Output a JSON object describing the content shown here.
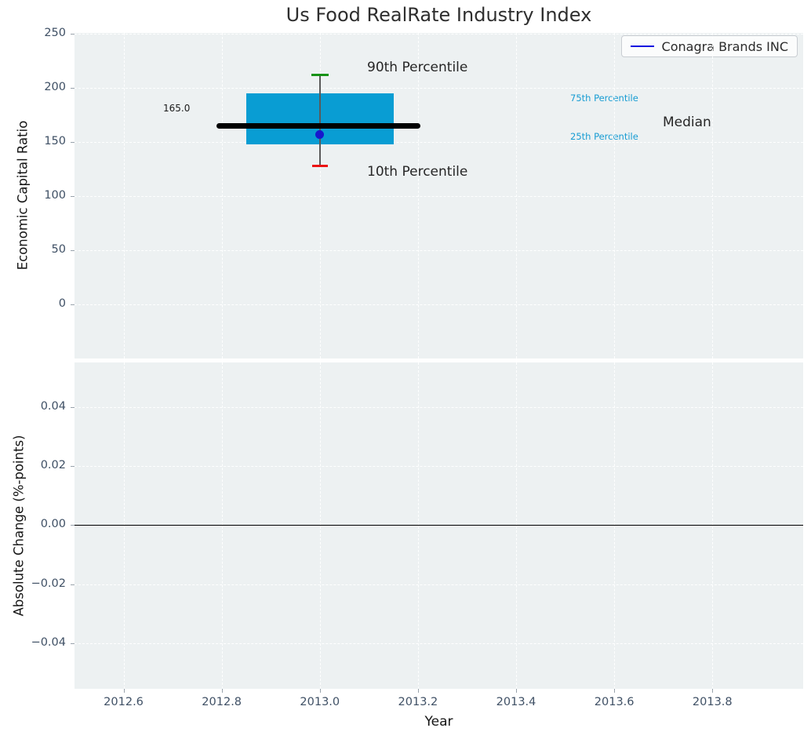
{
  "figure": {
    "title": "Us Food RealRate Industry Index",
    "xlabel": "Year"
  },
  "legend": {
    "label": "Conagra Brands INC"
  },
  "annotations": {
    "p90_label": "90th Percentile",
    "p10_label": "10th Percentile",
    "p75_label": "75th Percentile",
    "p25_label": "25th Percentile",
    "median_label": "Median",
    "median_value_label": "165.0"
  },
  "colors": {
    "plot_background": "#edf1f2",
    "grid": "#ffffff",
    "tick_text": "#3f5065",
    "box_fill": "#099dd3",
    "median_line": "#000000",
    "whisker": "#5a5a5a",
    "p90_cap": "#169216",
    "p10_cap": "#ec1313",
    "company_dot": "#1717cd",
    "legend_line": "#1111e0",
    "percentile_text": "#179cd3",
    "zero_line": "#000000"
  },
  "chart_data": [
    {
      "type": "boxplot",
      "title": "Us Food RealRate Industry Index",
      "xlabel": "Year",
      "ylabel": "Economic Capital Ratio",
      "xlim": [
        2012.5,
        2013.985
      ],
      "ylim": [
        -50,
        251
      ],
      "grid": true,
      "legend_entries": [
        "Conagra Brands INC"
      ],
      "legend_position": "upper right",
      "xticks": [
        {
          "v": 2012.6,
          "label": "2012.6"
        },
        {
          "v": 2012.8,
          "label": "2012.8"
        },
        {
          "v": 2013.0,
          "label": "2013.0"
        },
        {
          "v": 2013.2,
          "label": "2013.2"
        },
        {
          "v": 2013.4,
          "label": "2013.4"
        },
        {
          "v": 2013.6,
          "label": "2013.6"
        },
        {
          "v": 2013.8,
          "label": "2013.8"
        }
      ],
      "yticks": [
        {
          "v": 250,
          "label": "250"
        },
        {
          "v": 200,
          "label": "200"
        },
        {
          "v": 150,
          "label": "150"
        },
        {
          "v": 100,
          "label": "100"
        },
        {
          "v": 50,
          "label": "50"
        },
        {
          "v": 0,
          "label": "0"
        }
      ],
      "series": [
        {
          "name": "Conagra Brands INC",
          "x": 2013.0,
          "percentile_10": 128,
          "percentile_25": 148,
          "median": 165.0,
          "percentile_75": 195,
          "percentile_90": 212,
          "company_value": 157,
          "box_x_span": [
            2012.85,
            2013.15
          ],
          "median_x_span": [
            2012.79,
            2013.205
          ]
        }
      ]
    },
    {
      "type": "line",
      "xlabel": "Year",
      "ylabel": "Absolute Change (%-points)",
      "xlim": [
        2012.5,
        2013.985
      ],
      "ylim": [
        -0.0555,
        0.0552
      ],
      "grid": true,
      "zero_line": 0.0,
      "xticks": [
        {
          "v": 2012.6,
          "label": "2012.6"
        },
        {
          "v": 2012.8,
          "label": "2012.8"
        },
        {
          "v": 2013.0,
          "label": "2013.0"
        },
        {
          "v": 2013.2,
          "label": "2013.2"
        },
        {
          "v": 2013.4,
          "label": "2013.4"
        },
        {
          "v": 2013.6,
          "label": "2013.6"
        },
        {
          "v": 2013.8,
          "label": "2013.8"
        }
      ],
      "yticks": [
        {
          "v": 0.04,
          "label": "0.04"
        },
        {
          "v": 0.02,
          "label": "0.02"
        },
        {
          "v": 0.0,
          "label": "0.00"
        },
        {
          "v": -0.02,
          "label": "−0.02"
        },
        {
          "v": -0.04,
          "label": "−0.04"
        }
      ],
      "series": []
    }
  ]
}
